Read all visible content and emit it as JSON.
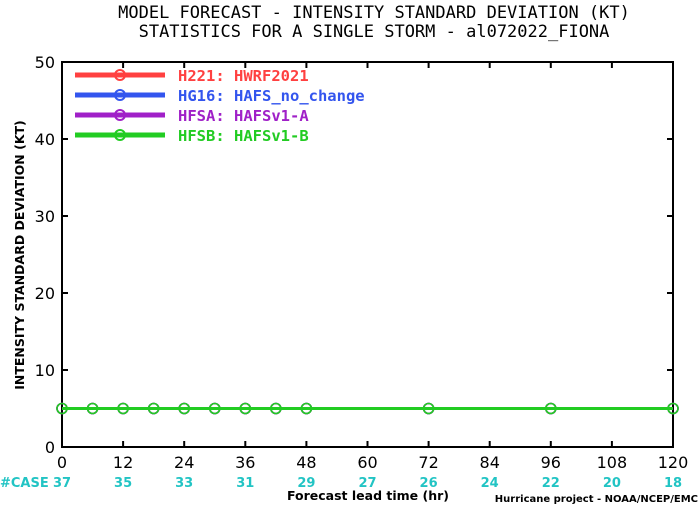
{
  "chart_data": {
    "type": "line",
    "title": "MODEL FORECAST - INTENSITY STANDARD DEVIATION (KT)",
    "subtitle": "STATISTICS FOR A SINGLE STORM - al072022_FIONA",
    "xlabel": "Forecast lead time (hr)",
    "ylabel": "INTENSITY STANDARD DEVIATION (KT)",
    "xlim": [
      0,
      120
    ],
    "ylim": [
      0,
      50
    ],
    "xticks": [
      "0",
      "12",
      "24",
      "36",
      "48",
      "60",
      "72",
      "84",
      "96",
      "108",
      "120"
    ],
    "yticks": [
      "0",
      "10",
      "20",
      "30",
      "40",
      "50"
    ],
    "grid": false,
    "legend_position": "top-left",
    "x": [
      0,
      6,
      12,
      18,
      24,
      30,
      36,
      42,
      48,
      72,
      96,
      120
    ],
    "series": [
      {
        "name": "H221: HWRF2021",
        "color": "#ff4040",
        "values": [
          5,
          5,
          5,
          5,
          5,
          5,
          5,
          5,
          5,
          5,
          5,
          5
        ]
      },
      {
        "name": "HG16: HAFS_no_change",
        "color": "#3355ee",
        "values": [
          5,
          5,
          5,
          5,
          5,
          5,
          5,
          5,
          5,
          5,
          5,
          5
        ]
      },
      {
        "name": "HFSA: HAFSv1-A",
        "color": "#a020c8",
        "values": [
          5,
          5,
          5,
          5,
          5,
          5,
          5,
          5,
          5,
          5,
          5,
          5
        ]
      },
      {
        "name": "HFSB: HAFSv1-B",
        "color": "#22cc22",
        "values": [
          5,
          5,
          5,
          5,
          5,
          5,
          5,
          5,
          5,
          5,
          5,
          5
        ]
      }
    ],
    "cases": {
      "label": "#CASE",
      "color": "#22c4c4",
      "x": [
        0,
        12,
        24,
        36,
        48,
        60,
        72,
        84,
        96,
        108,
        120
      ],
      "values": [
        "37",
        "35",
        "33",
        "31",
        "29",
        "27",
        "26",
        "24",
        "22",
        "20",
        "18"
      ]
    },
    "credit": "Hurricane project - NOAA/NCEP/EMC"
  }
}
